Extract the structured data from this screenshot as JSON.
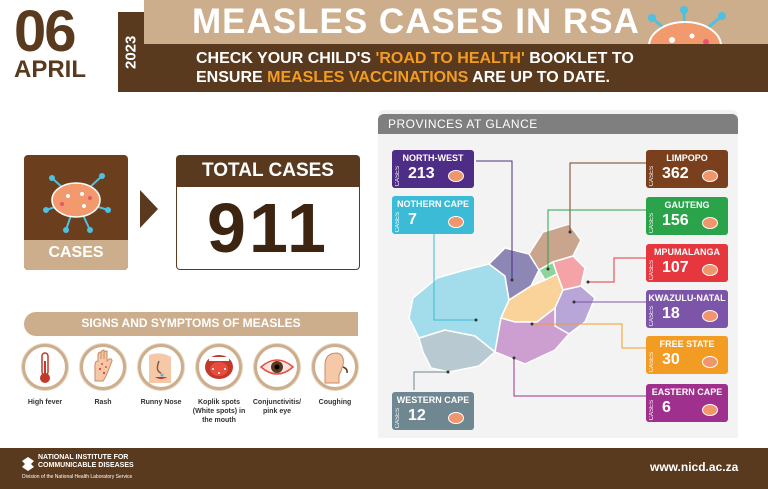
{
  "header": {
    "day": "06",
    "month": "APRIL",
    "year": "2023",
    "title": "MEASLES CASES IN RSA",
    "message_line1_a": "CHECK YOUR CHILD'S ",
    "message_line1_b": "'ROAD TO HEALTH'",
    "message_line1_c": " BOOKLET TO",
    "message_line2_a": "ENSURE ",
    "message_line2_b": "MEASLES VACCINATIONS",
    "message_line2_c": " ARE UP TO DATE."
  },
  "cases": {
    "label": "CASES",
    "total_title": "TOTAL CASES",
    "total_value": "911"
  },
  "symptoms": {
    "title": "SIGNS AND SYMPTOMS OF MEASLES",
    "items": [
      {
        "label": "High fever",
        "icon": "thermometer-icon"
      },
      {
        "label": "Rash",
        "icon": "rash-hand-icon"
      },
      {
        "label": "Runny Nose",
        "icon": "runny-nose-icon"
      },
      {
        "label": "Koplik spots (White spots) in the mouth",
        "icon": "koplik-spots-icon"
      },
      {
        "label": "Conjunctivitis/ pink eye",
        "icon": "pink-eye-icon"
      },
      {
        "label": "Coughing",
        "icon": "coughing-icon"
      }
    ]
  },
  "provinces": {
    "title": "PROVINCES AT GLANCE",
    "cases_word": "CASES",
    "items": [
      {
        "name": "NORTH-WEST",
        "count": "213",
        "color": "#4d2d85"
      },
      {
        "name": "NOTHERN CAPE",
        "count": "7",
        "color": "#3bbbd6"
      },
      {
        "name": "LIMPOPO",
        "count": "362",
        "color": "#7a3f1d"
      },
      {
        "name": "GAUTENG",
        "count": "156",
        "color": "#2aa34a"
      },
      {
        "name": "MPUMALANGA",
        "count": "107",
        "color": "#e5373d"
      },
      {
        "name": "KWAZULU-NATAL",
        "count": "18",
        "color": "#7c54a8"
      },
      {
        "name": "FREE STATE",
        "count": "30",
        "color": "#f39c24"
      },
      {
        "name": "EASTERN CAPE",
        "count": "6",
        "color": "#a0308d"
      },
      {
        "name": "WESTERN CAPE",
        "count": "12",
        "color": "#6f8790"
      }
    ]
  },
  "footer": {
    "org_line1": "NATIONAL INSTITUTE FOR",
    "org_line2": "COMMUNICABLE DISEASES",
    "org_line3": "Division of the National Health Laboratory Service",
    "url": "www.nicd.ac.za"
  },
  "colors": {
    "brown": "#5a3a1e",
    "tan": "#ccae8c",
    "orange": "#f39c24",
    "virus": "#f0956c"
  }
}
